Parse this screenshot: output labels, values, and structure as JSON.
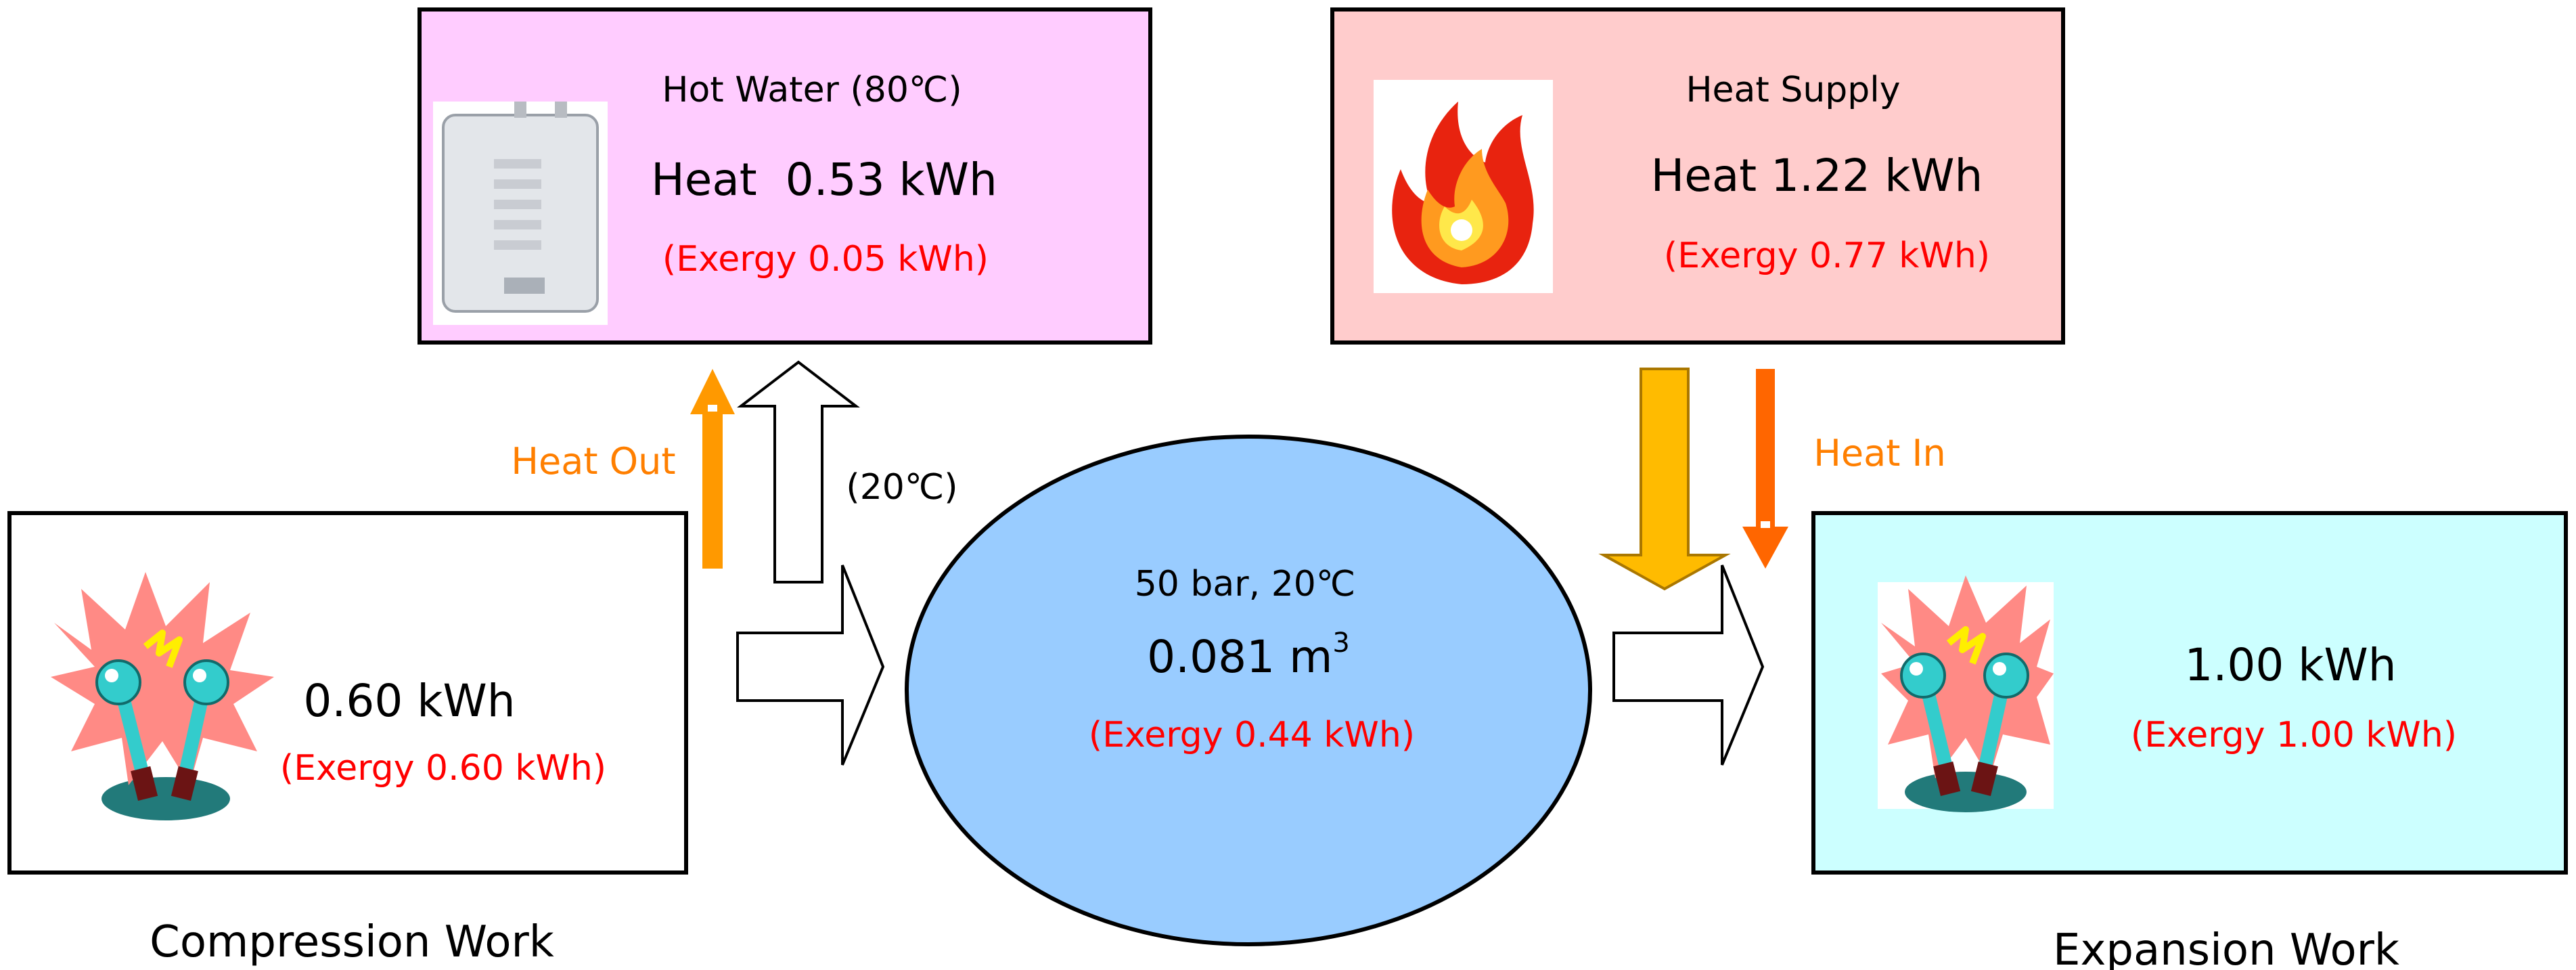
{
  "colors": {
    "hot_water_box": "#ffccff",
    "heat_supply_box": "#ffcccc",
    "expansion_box": "#ccffff",
    "storage_ellipse": "#99ccff",
    "exergy_text": "#ff0000",
    "heat_flow_text": "#ff7f00",
    "heat_flow_arrow": "#ff9900",
    "heat_in_arrow": "#ff6600",
    "supply_arrow": "#ffbb00"
  },
  "hot_water": {
    "title": "Hot Water (80℃)",
    "heat": "Heat  0.53 kWh",
    "exergy": "(Exergy 0.05 kWh)",
    "icon": "water-heater-icon"
  },
  "heat_supply": {
    "title": "Heat Supply",
    "heat": "Heat 1.22 kWh",
    "exergy": "(Exergy 0.77 kWh)",
    "icon": "fire-icon"
  },
  "compression": {
    "value": "0.60 kWh",
    "exergy": "(Exergy 0.60 kWh)",
    "caption": "Compression Work",
    "icon": "electric-spark-icon"
  },
  "expansion": {
    "value": "1.00 kWh",
    "exergy": "(Exergy 1.00 kWh)",
    "caption": "Expansion Work",
    "icon": "electric-spark-icon"
  },
  "storage": {
    "condition": "50 bar, 20℃",
    "volume": "0.081 m",
    "volume_unit_sup": "3",
    "exergy": "(Exergy 0.44 kWh)"
  },
  "flows": {
    "heat_out": "Heat Out",
    "heat_in": "Heat In",
    "return_temp": "(20℃)"
  }
}
